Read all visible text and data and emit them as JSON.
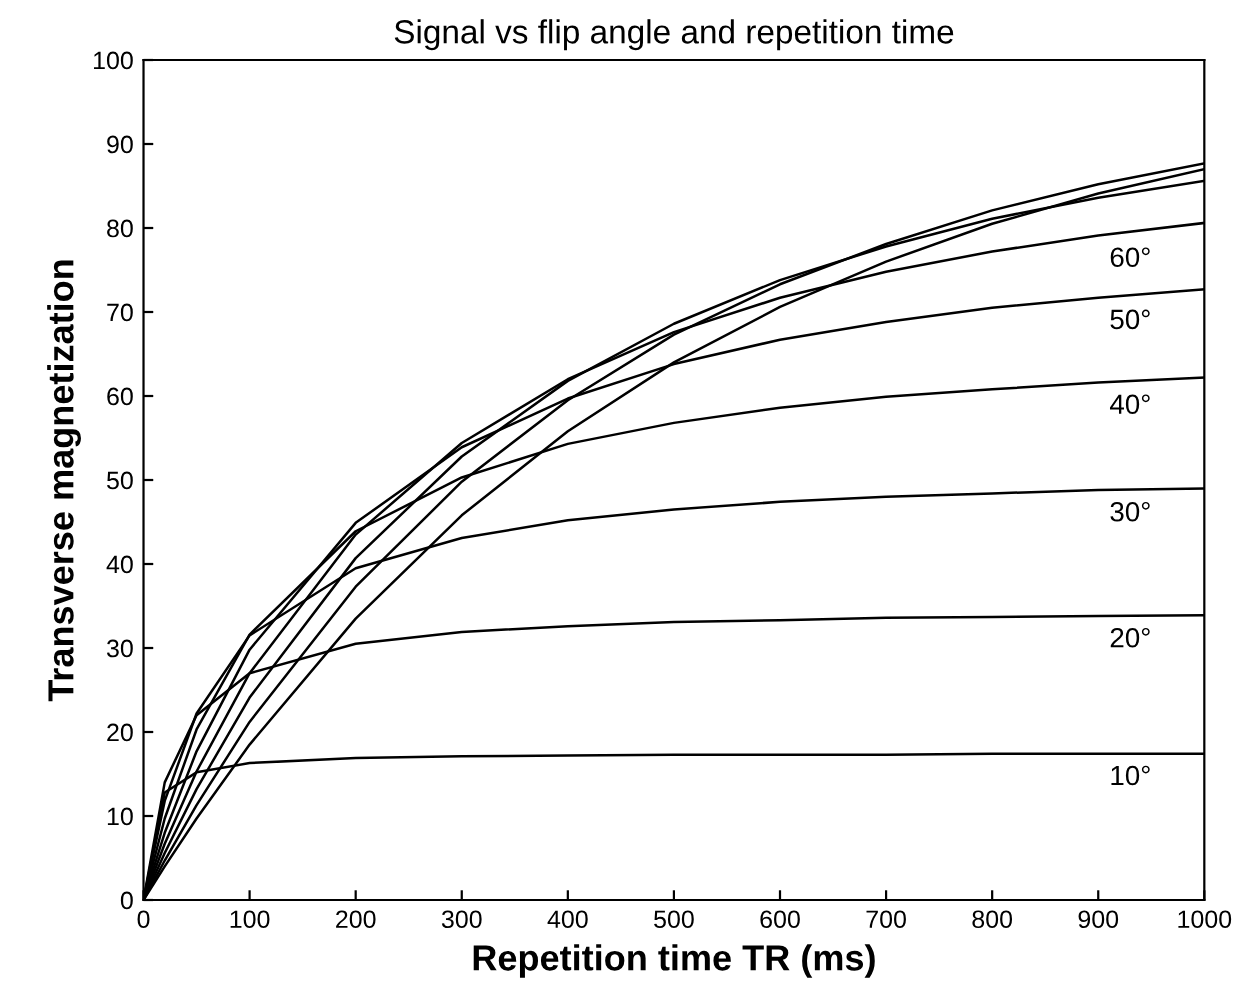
{
  "chart_data": {
    "type": "line",
    "title": "Signal vs flip angle and repetition time",
    "xlabel": "Repetition time TR (ms)",
    "ylabel": "Transverse magnetization",
    "x": [
      0,
      20,
      50,
      100,
      200,
      300,
      400,
      500,
      600,
      700,
      800,
      900,
      1000
    ],
    "series": [
      {
        "name": "10°",
        "color": "#000000",
        "values": [
          0,
          12.8,
          15.2,
          16.3,
          16.9,
          17.1,
          17.2,
          17.3,
          17.3,
          17.3,
          17.4,
          17.4,
          17.4
        ]
      },
      {
        "name": "20°",
        "color": "#000000",
        "values": [
          0,
          14.0,
          22.0,
          27.0,
          30.5,
          31.9,
          32.6,
          33.1,
          33.3,
          33.6,
          33.7,
          33.8,
          33.9
        ]
      },
      {
        "name": "30°",
        "color": "#000000",
        "values": [
          0,
          11.8,
          22.2,
          31.5,
          39.5,
          43.1,
          45.2,
          46.5,
          47.4,
          48.0,
          48.4,
          48.8,
          49.0
        ]
      },
      {
        "name": "40°",
        "color": "#000000",
        "values": [
          0,
          9.7,
          20.3,
          31.6,
          43.9,
          50.3,
          54.3,
          56.8,
          58.6,
          59.9,
          60.8,
          61.6,
          62.2
        ]
      },
      {
        "name": "50°",
        "color": "#000000",
        "values": [
          0,
          8.0,
          17.7,
          29.8,
          44.9,
          53.9,
          59.7,
          63.8,
          66.7,
          68.8,
          70.5,
          71.7,
          72.7
        ]
      },
      {
        "name": "60°",
        "color": "#000000",
        "values": [
          0,
          6.7,
          15.3,
          27.0,
          43.5,
          54.4,
          62.0,
          67.6,
          71.7,
          74.8,
          77.2,
          79.1,
          80.6
        ]
      },
      {
        "color": "#000000",
        "values": [
          0,
          5.6,
          13.2,
          24.1,
          40.7,
          52.8,
          61.8,
          68.6,
          73.8,
          77.8,
          81.1,
          83.6,
          85.6
        ]
      },
      {
        "color": "#000000",
        "values": [
          0,
          4.7,
          11.3,
          21.2,
          37.3,
          49.8,
          59.5,
          67.3,
          73.3,
          78.1,
          82.1,
          85.2,
          87.7
        ]
      },
      {
        "color": "#000000",
        "values": [
          0,
          4.0,
          9.7,
          18.5,
          33.5,
          45.8,
          55.8,
          64.0,
          70.6,
          76.0,
          80.5,
          84.1,
          87.0
        ]
      }
    ],
    "xlim": [
      0,
      1000
    ],
    "ylim": [
      0,
      100
    ],
    "xticks": [
      0,
      100,
      200,
      300,
      400,
      500,
      600,
      700,
      800,
      900,
      1000
    ],
    "yticks": [
      0,
      10,
      20,
      30,
      40,
      50,
      60,
      70,
      80,
      90,
      100
    ],
    "grid": false,
    "legend": false,
    "marker": "none",
    "line_style": "solid"
  }
}
